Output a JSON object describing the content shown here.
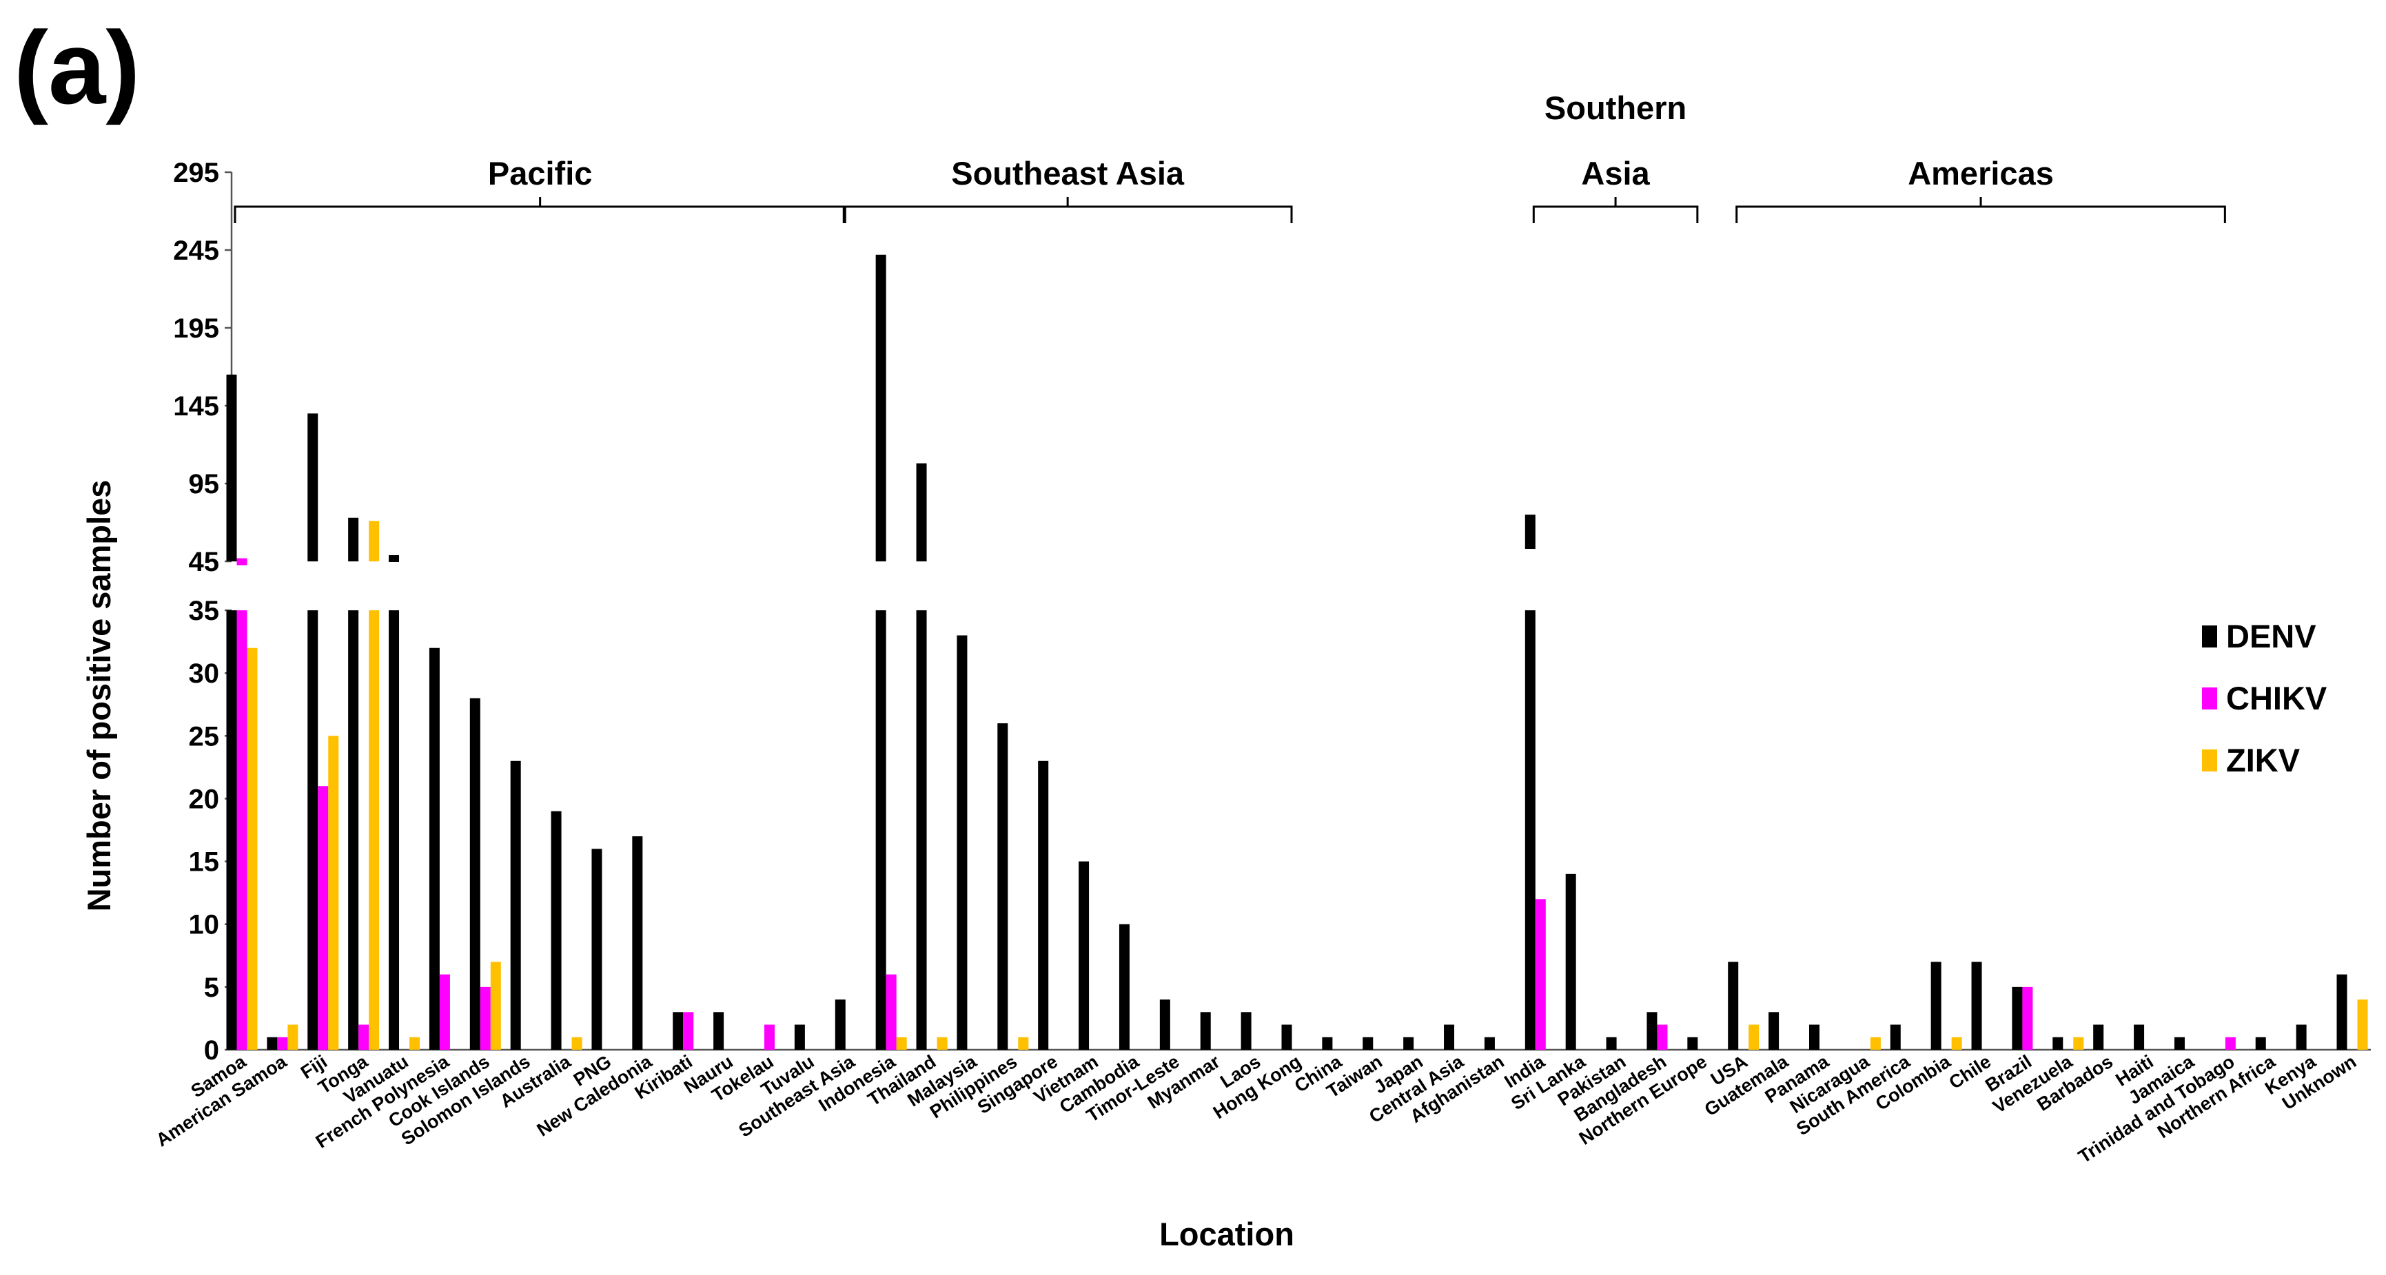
{
  "chart_data": {
    "type": "bar",
    "panel_label": "(a)",
    "xlabel": "Location",
    "ylabel": "Number of positive samples",
    "axis_break": {
      "lower_range": [
        0,
        35
      ],
      "upper_range": [
        45,
        295
      ]
    },
    "lower_ticks": [
      0,
      5,
      10,
      15,
      20,
      25,
      30,
      35
    ],
    "upper_ticks": [
      45,
      95,
      145,
      195,
      245,
      295
    ],
    "legend_position": "right",
    "categories": [
      "Samoa",
      "American Samoa",
      "Fiji",
      "Tonga",
      "Vanuatu",
      "French Polynesia",
      "Cook Islands",
      "Solomon Islands",
      "Australia",
      "PNG",
      "New Caledonia",
      "Kiribati",
      "Nauru",
      "Tokelau",
      "Tuvalu",
      "Southeast Asia",
      "Indonesia",
      "Thailand",
      "Malaysia",
      "Philippines",
      "Singapore",
      "Vietnam",
      "Cambodia",
      "Timor-Leste",
      "Myanmar",
      "Laos",
      "Hong Kong",
      "China",
      "Taiwan",
      "Japan",
      "Central Asia",
      "Afghanistan",
      "India",
      "Sri Lanka",
      "Pakistan",
      "Bangladesh",
      "Northern Europe",
      "USA",
      "Guatemala",
      "Panama",
      "Nicaragua",
      "South America",
      "Colombia",
      "Chile",
      "Brazil",
      "Venezuela",
      "Barbados",
      "Haiti",
      "Jamaica",
      "Trinidad and Tobago",
      "Northern Africa",
      "Kenya",
      "Unknown"
    ],
    "series": [
      {
        "name": "DENV",
        "color": "#000000",
        "values": [
          165,
          1,
          140,
          73,
          49,
          32,
          28,
          23,
          19,
          16,
          17,
          3,
          3,
          0,
          2,
          4,
          242,
          108,
          33,
          26,
          23,
          15,
          10,
          4,
          3,
          3,
          2,
          1,
          1,
          1,
          2,
          1,
          75,
          14,
          1,
          3,
          1,
          7,
          3,
          2,
          0,
          2,
          7,
          7,
          5,
          1,
          2,
          2,
          1,
          0,
          1,
          2,
          6
        ]
      },
      {
        "name": "CHIKV",
        "color": "#ff00ff",
        "values": [
          47,
          1,
          21,
          2,
          0,
          6,
          5,
          0,
          0,
          0,
          0,
          3,
          0,
          2,
          0,
          0,
          6,
          0,
          0,
          0,
          0,
          0,
          0,
          0,
          0,
          0,
          0,
          0,
          0,
          0,
          0,
          0,
          12,
          0,
          0,
          2,
          0,
          0,
          0,
          0,
          0,
          0,
          0,
          0,
          5,
          0,
          0,
          0,
          0,
          1,
          0,
          0,
          0
        ]
      },
      {
        "name": "ZIKV",
        "color": "#ffc000",
        "values": [
          32,
          2,
          25,
          71,
          1,
          0,
          7,
          0,
          1,
          0,
          0,
          0,
          0,
          0,
          0,
          0,
          1,
          1,
          0,
          1,
          0,
          0,
          0,
          0,
          0,
          0,
          0,
          0,
          0,
          0,
          0,
          0,
          0,
          0,
          0,
          0,
          0,
          2,
          0,
          0,
          1,
          0,
          1,
          0,
          0,
          1,
          0,
          0,
          0,
          0,
          0,
          0,
          4
        ]
      }
    ],
    "regions": [
      {
        "label_lines": [
          "Pacific"
        ],
        "start": 0,
        "end": 15
      },
      {
        "label_lines": [
          "Southeast Asia"
        ],
        "start": 15,
        "end": 26
      },
      {
        "label_lines": [
          "Southern",
          "Asia"
        ],
        "start": 32,
        "end": 36
      },
      {
        "label_lines": [
          "Americas"
        ],
        "start": 37,
        "end": 49
      }
    ]
  }
}
